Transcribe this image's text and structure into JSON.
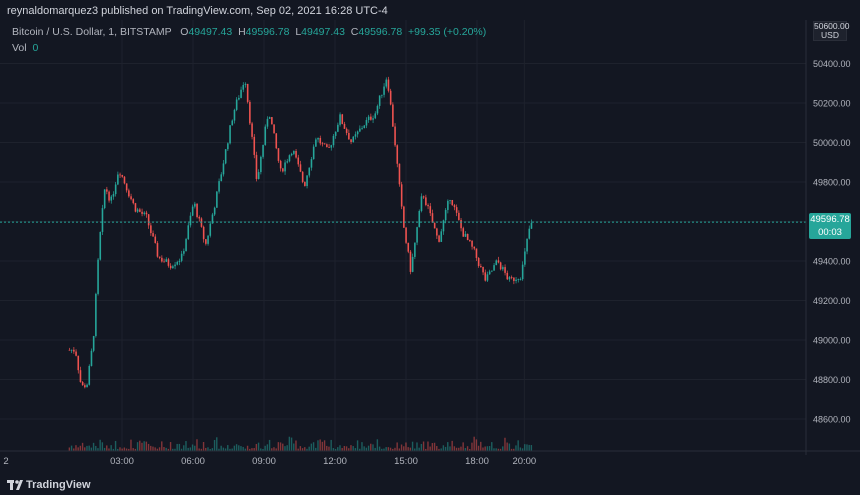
{
  "header": {
    "published_line": "reynaldomarquez3 published on TradingView.com, Sep 02, 2021 16:28 UTC-4"
  },
  "legend": {
    "symbol": "Bitcoin / U.S. Dollar, 1, BITSTAMP",
    "o_label": "O",
    "o_value": "49497.43",
    "h_label": "H",
    "h_value": "49596.78",
    "l_label": "L",
    "l_value": "49497.43",
    "c_label": "C",
    "c_value": "49596.78",
    "change": "+99.35 (+0.20%)",
    "vol_label": "Vol",
    "vol_value": "0"
  },
  "price_axis": {
    "currency": "USD",
    "top_label": "50600.00",
    "ticks": [
      "50400.00",
      "50200.00",
      "50000.00",
      "49800.00",
      "49400.00",
      "49200.00",
      "49000.00",
      "48800.00",
      "48600.00"
    ],
    "last_price": "49596.78",
    "countdown": "00:03"
  },
  "time_axis": {
    "left_partial": "2",
    "ticks": [
      "03:00",
      "06:00",
      "09:00",
      "12:00",
      "15:00",
      "18:00",
      "20:00"
    ]
  },
  "footer": {
    "brand": "TradingView"
  },
  "colors": {
    "background": "#131722",
    "up": "#26a69a",
    "down": "#ef5350",
    "grid": "#1e222d",
    "text": "#b2b5be"
  },
  "chart_data": {
    "type": "candlestick",
    "symbol": "BTCUSD",
    "interval": "1",
    "x_ticks": [
      "03:00",
      "06:00",
      "09:00",
      "12:00",
      "15:00",
      "18:00",
      "20:00"
    ],
    "y_ticks": [
      48600,
      48800,
      49000,
      49200,
      49400,
      49600,
      49800,
      50000,
      50200,
      50400
    ],
    "ylim": [
      48500,
      50600
    ],
    "price_keypoints": [
      {
        "t": "01:00",
        "price": 48950
      },
      {
        "t": "01:15",
        "price": 48760
      },
      {
        "t": "01:30",
        "price": 48780
      },
      {
        "t": "01:45",
        "price": 49000
      },
      {
        "t": "02:00",
        "price": 49480
      },
      {
        "t": "02:15",
        "price": 49780
      },
      {
        "t": "02:30",
        "price": 49700
      },
      {
        "t": "02:50",
        "price": 49870
      },
      {
        "t": "03:30",
        "price": 49670
      },
      {
        "t": "04:00",
        "price": 49620
      },
      {
        "t": "04:30",
        "price": 49420
      },
      {
        "t": "05:00",
        "price": 49380
      },
      {
        "t": "05:30",
        "price": 49420
      },
      {
        "t": "06:00",
        "price": 49700
      },
      {
        "t": "06:30",
        "price": 49480
      },
      {
        "t": "07:00",
        "price": 49750
      },
      {
        "t": "07:40",
        "price": 50150
      },
      {
        "t": "08:10",
        "price": 50330
      },
      {
        "t": "08:40",
        "price": 49800
      },
      {
        "t": "09:10",
        "price": 50170
      },
      {
        "t": "09:40",
        "price": 49850
      },
      {
        "t": "10:10",
        "price": 49970
      },
      {
        "t": "10:40",
        "price": 49780
      },
      {
        "t": "11:10",
        "price": 50030
      },
      {
        "t": "11:40",
        "price": 49950
      },
      {
        "t": "12:10",
        "price": 50130
      },
      {
        "t": "12:40",
        "price": 50000
      },
      {
        "t": "13:10",
        "price": 50090
      },
      {
        "t": "13:40",
        "price": 50150
      },
      {
        "t": "14:10",
        "price": 50340
      },
      {
        "t": "14:30",
        "price": 50000
      },
      {
        "t": "14:50",
        "price": 49600
      },
      {
        "t": "15:10",
        "price": 49350
      },
      {
        "t": "15:40",
        "price": 49750
      },
      {
        "t": "16:20",
        "price": 49500
      },
      {
        "t": "16:50",
        "price": 49730
      },
      {
        "t": "17:20",
        "price": 49550
      },
      {
        "t": "17:50",
        "price": 49450
      },
      {
        "t": "18:20",
        "price": 49300
      },
      {
        "t": "18:50",
        "price": 49400
      },
      {
        "t": "19:20",
        "price": 49300
      },
      {
        "t": "19:50",
        "price": 49330
      },
      {
        "t": "20:10",
        "price": 49560
      },
      {
        "t": "20:20",
        "price": 49597
      }
    ],
    "last_close": 49596.78
  }
}
